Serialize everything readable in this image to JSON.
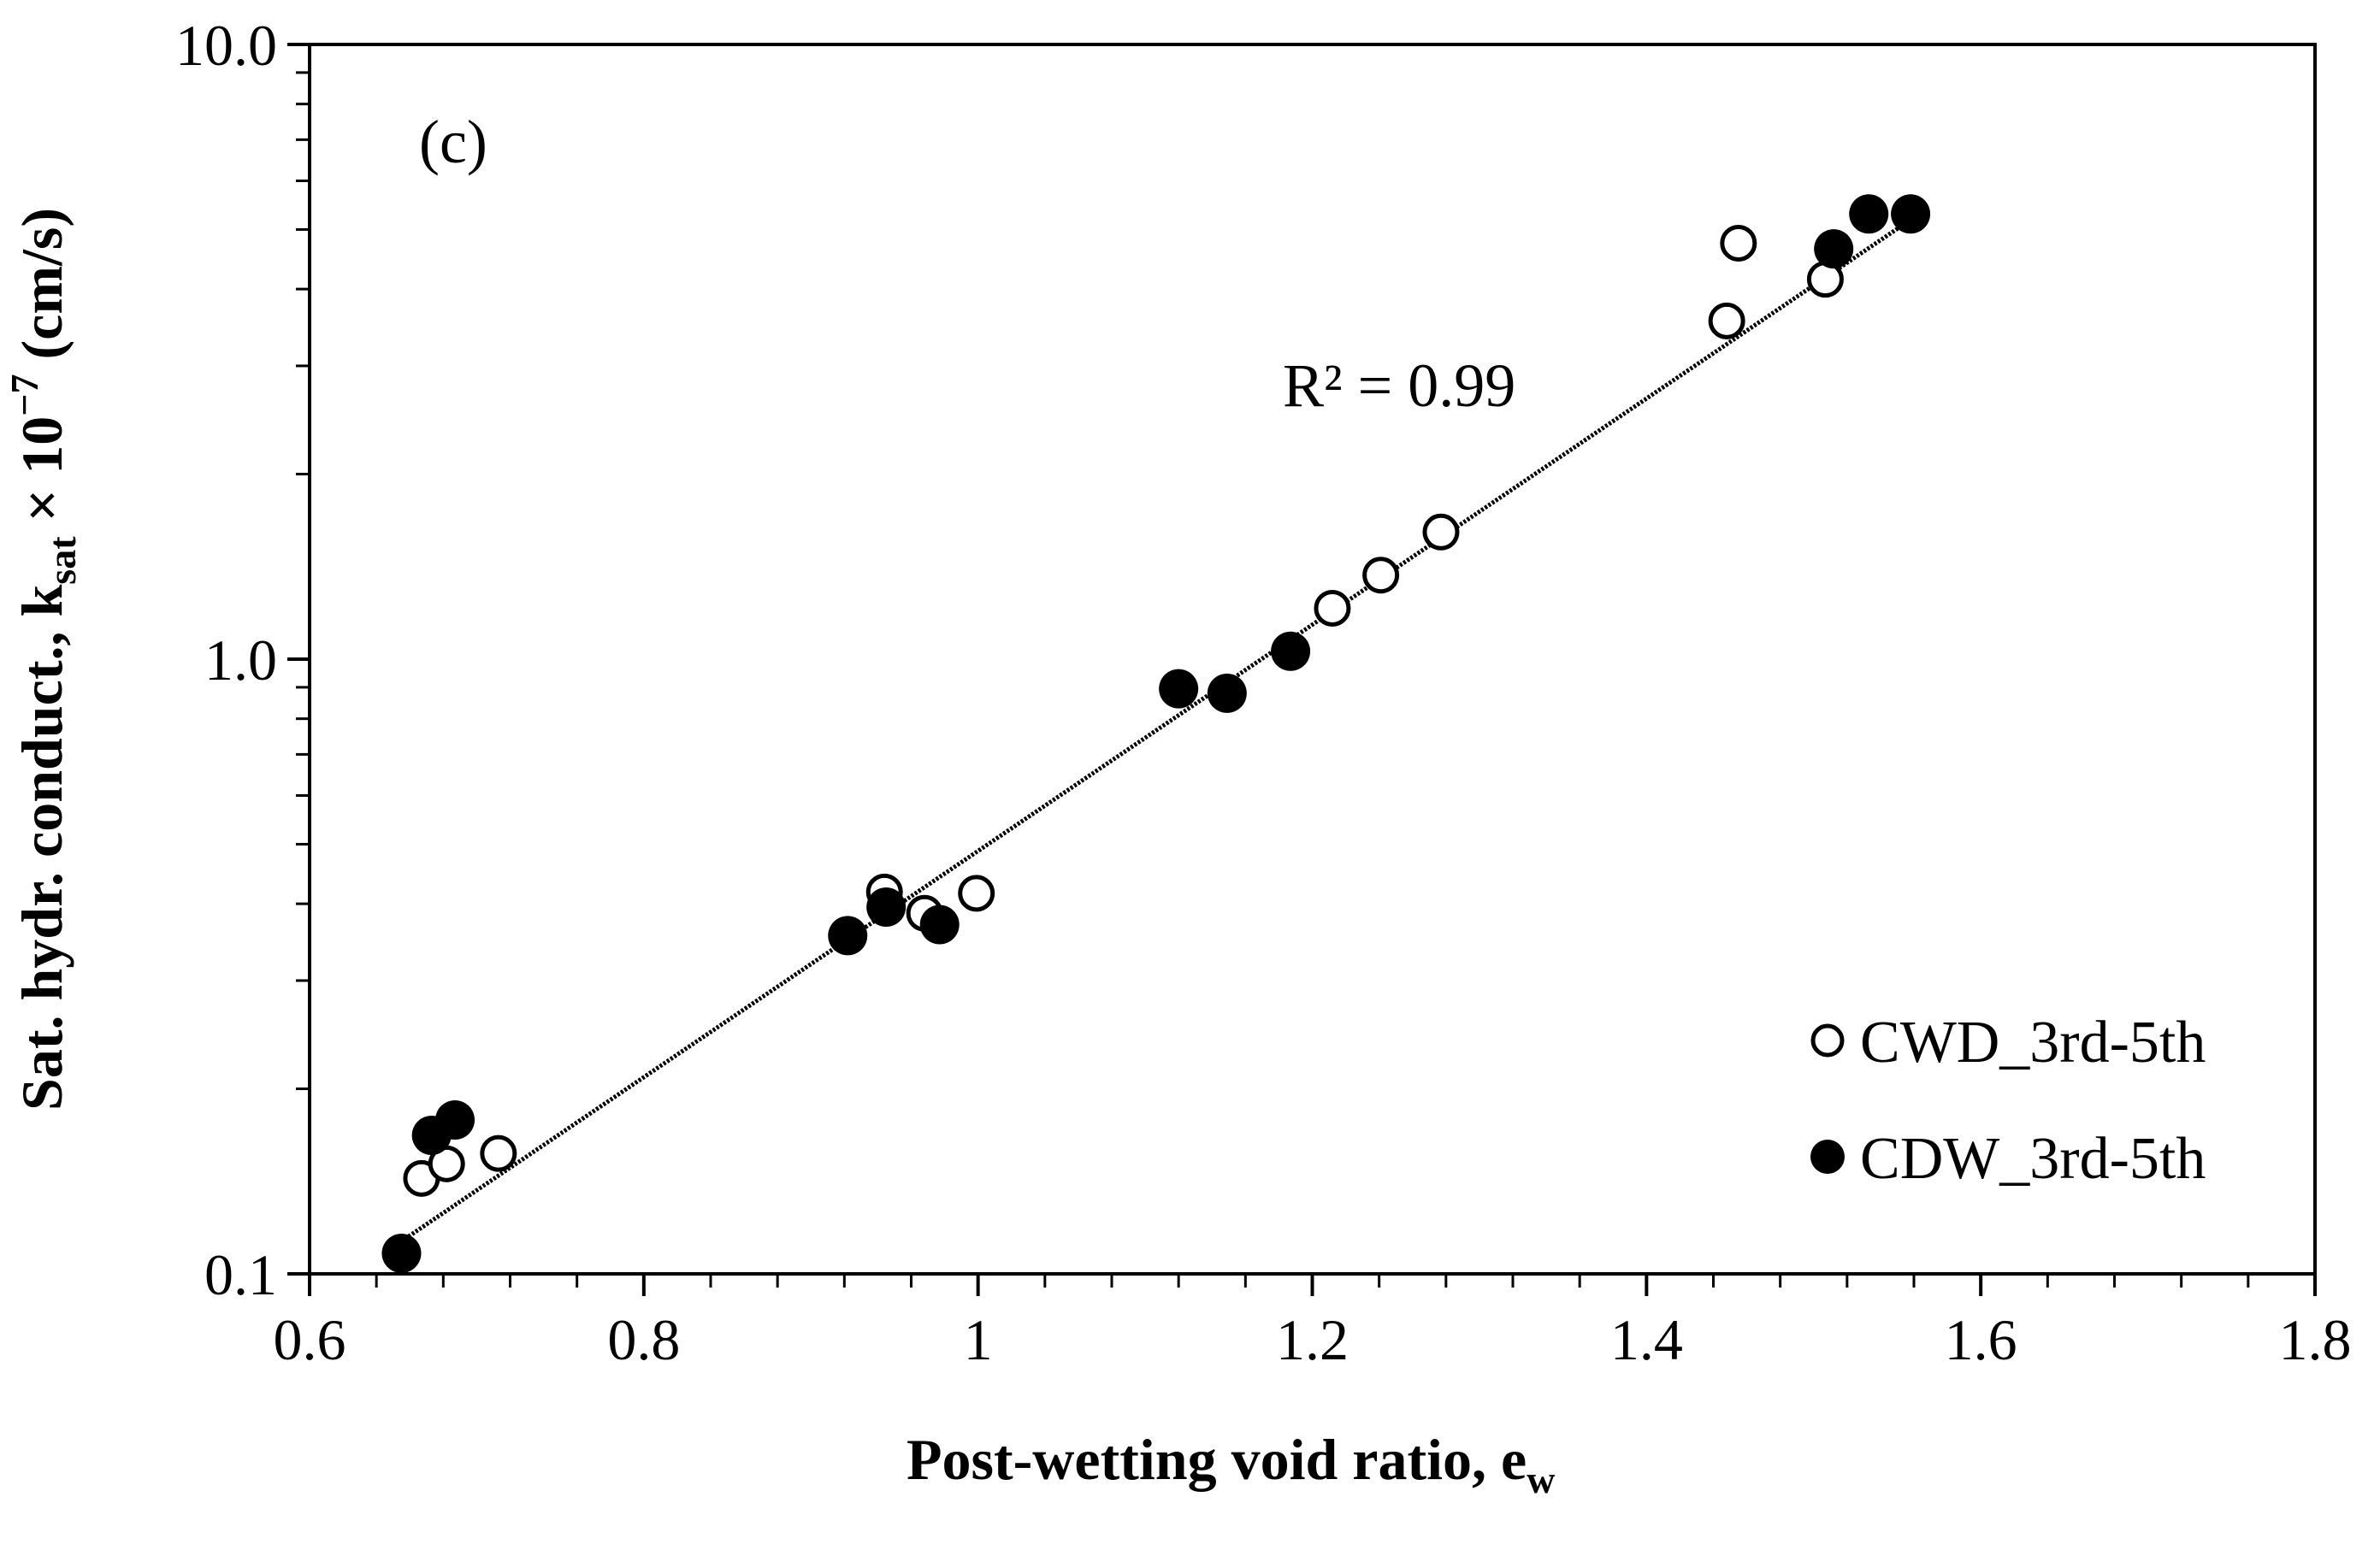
{
  "chart_data": {
    "type": "scatter",
    "panel_label": "(c)",
    "xlabel": "Post-wetting void ratio, e",
    "xlabel_sub": "w",
    "ylabel_main": "Sat. hydr. conduct., k",
    "ylabel_sub": "sat",
    "ylabel_tail": " × 10",
    "ylabel_exp": "−7",
    "ylabel_unit": " (cm/s)",
    "xlim": [
      0.6,
      1.8
    ],
    "ylim": [
      0.1,
      10.0
    ],
    "yscale": "log",
    "x_ticks": [
      0.6,
      0.8,
      1.0,
      1.2,
      1.4,
      1.6,
      1.8
    ],
    "x_tick_labels": [
      "0.6",
      "0.8",
      "1",
      "1.2",
      "1.4",
      "1.6",
      "1.8"
    ],
    "y_ticks": [
      0.1,
      1.0,
      10.0
    ],
    "y_tick_labels": [
      "0.1",
      "1.0",
      "10.0"
    ],
    "legend_position": "bottom-right",
    "series": [
      {
        "name": "CWD_3rd-5th",
        "marker": "open-circle",
        "color": "#000000",
        "points": [
          {
            "x": 0.667,
            "y": 0.143
          },
          {
            "x": 0.682,
            "y": 0.151
          },
          {
            "x": 0.713,
            "y": 0.157
          },
          {
            "x": 0.944,
            "y": 0.418
          },
          {
            "x": 0.968,
            "y": 0.386
          },
          {
            "x": 0.999,
            "y": 0.416
          },
          {
            "x": 1.212,
            "y": 1.21
          },
          {
            "x": 1.241,
            "y": 1.37
          },
          {
            "x": 1.277,
            "y": 1.61
          },
          {
            "x": 1.448,
            "y": 3.55
          },
          {
            "x": 1.455,
            "y": 4.75
          },
          {
            "x": 1.507,
            "y": 4.15
          }
        ]
      },
      {
        "name": "CDW_3rd-5th",
        "marker": "filled-circle",
        "color": "#000000",
        "points": [
          {
            "x": 0.655,
            "y": 0.108
          },
          {
            "x": 0.673,
            "y": 0.168
          },
          {
            "x": 0.687,
            "y": 0.178
          },
          {
            "x": 0.922,
            "y": 0.355
          },
          {
            "x": 0.945,
            "y": 0.395
          },
          {
            "x": 0.977,
            "y": 0.37
          },
          {
            "x": 1.12,
            "y": 0.895
          },
          {
            "x": 1.149,
            "y": 0.88
          },
          {
            "x": 1.187,
            "y": 1.03
          },
          {
            "x": 1.512,
            "y": 4.65
          },
          {
            "x": 1.533,
            "y": 5.3
          },
          {
            "x": 1.558,
            "y": 5.3
          }
        ]
      }
    ],
    "trendline": {
      "type": "exponential",
      "x_start": 0.655,
      "x_end": 1.555,
      "y_start": 0.113,
      "y_end": 5.12,
      "label": "R² = 0.99"
    }
  }
}
